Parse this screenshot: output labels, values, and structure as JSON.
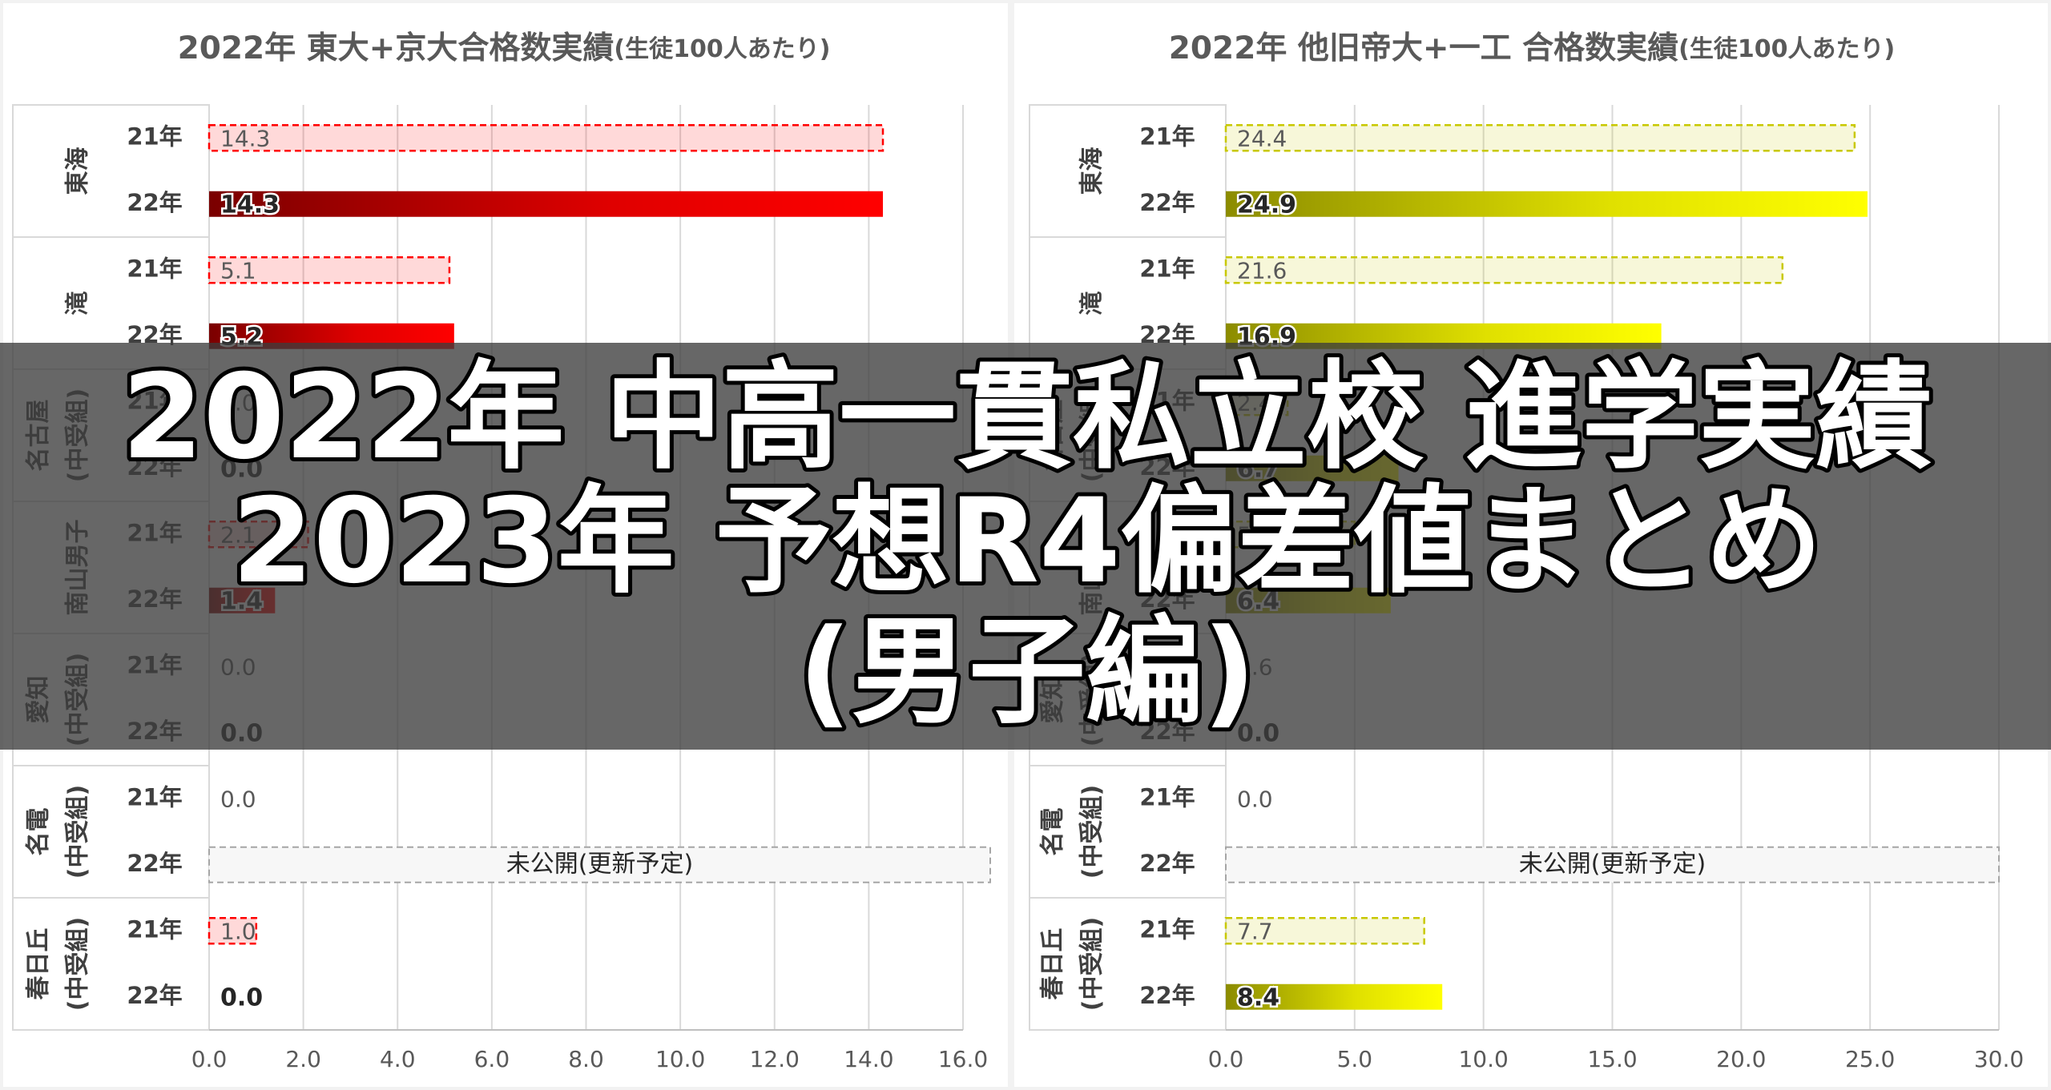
{
  "chart_data": [
    {
      "type": "bar",
      "title": "2022年 東大+京大合格数実績",
      "subtitle": "(生徒100人あたり)",
      "categories": [
        [
          "東海"
        ],
        [
          "滝"
        ],
        [
          "名古屋",
          "(中受組)"
        ],
        [
          "南山男子"
        ],
        [
          "愛知",
          "(中受組)"
        ],
        [
          "名電",
          "(中受組)"
        ],
        [
          "春日丘",
          "(中受組)"
        ]
      ],
      "series": [
        {
          "name": "21年",
          "color": "#ff0000",
          "values": [
            14.3,
            5.1,
            0.0,
            2.1,
            0.0,
            0.0,
            1.0
          ],
          "value_labels": [
            "14.3",
            "5.1",
            "0.0",
            "2.1",
            "0.0",
            "0.0",
            "1.0"
          ]
        },
        {
          "name": "22年",
          "color": "#ff0000",
          "values": [
            14.3,
            5.2,
            0.0,
            1.4,
            0.0,
            null,
            0.0
          ],
          "value_labels": [
            "14.3",
            "5.2",
            "0.0",
            "1.4",
            "0.0",
            null,
            "0.0"
          ]
        }
      ],
      "annotation": "未公開(更新予定)",
      "xlim": [
        0,
        16
      ],
      "xticks": [
        {
          "value": 0,
          "label": "0.0"
        },
        {
          "value": 2,
          "label": "2.0"
        },
        {
          "value": 4,
          "label": "4.0"
        },
        {
          "value": 6,
          "label": "6.0"
        },
        {
          "value": 8,
          "label": "8.0"
        },
        {
          "value": 10,
          "label": "10.0"
        },
        {
          "value": 12,
          "label": "12.0"
        },
        {
          "value": 14,
          "label": "14.0"
        },
        {
          "value": 16,
          "label": "16.0"
        }
      ],
      "grid": true
    },
    {
      "type": "bar",
      "title": "2022年 他旧帝大+一工 合格数実績",
      "subtitle": "(生徒100人あたり)",
      "categories": [
        [
          "東海"
        ],
        [
          "滝"
        ],
        [
          "名古屋",
          "(中受組)"
        ],
        [
          "南山男子"
        ],
        [
          "愛知",
          "(中受組)"
        ],
        [
          "名電",
          "(中受組)"
        ],
        [
          "春日丘",
          "(中受組)"
        ]
      ],
      "series": [
        {
          "name": "21年",
          "color": "#c8c800",
          "values": [
            24.4,
            21.6,
            2.4,
            5.0,
            0.6,
            0.0,
            7.7
          ],
          "value_labels": [
            "24.4",
            "21.6",
            "2.4",
            "5.0",
            "0.6",
            "0.0",
            "7.7"
          ]
        },
        {
          "name": "22年",
          "color": "#ffff00",
          "values": [
            24.9,
            16.9,
            6.7,
            6.4,
            0.0,
            null,
            8.4
          ],
          "value_labels": [
            "24.9",
            "16.9",
            "6.7",
            "6.4",
            "0.0",
            null,
            "8.4"
          ]
        }
      ],
      "annotation": "未公開(更新予定)",
      "xlim": [
        0,
        30
      ],
      "xticks": [
        {
          "value": 0,
          "label": "0.0"
        },
        {
          "value": 5,
          "label": "5.0"
        },
        {
          "value": 10,
          "label": "10.0"
        },
        {
          "value": 15,
          "label": "15.0"
        },
        {
          "value": 20,
          "label": "20.0"
        },
        {
          "value": 25,
          "label": "25.0"
        },
        {
          "value": 30,
          "label": "30.0"
        }
      ],
      "grid": true
    }
  ],
  "overlay": {
    "lines": [
      "2022年 中高一貫私立校 進学実績",
      "2023年 予想R4偏差値まとめ",
      "(男子編)"
    ]
  }
}
